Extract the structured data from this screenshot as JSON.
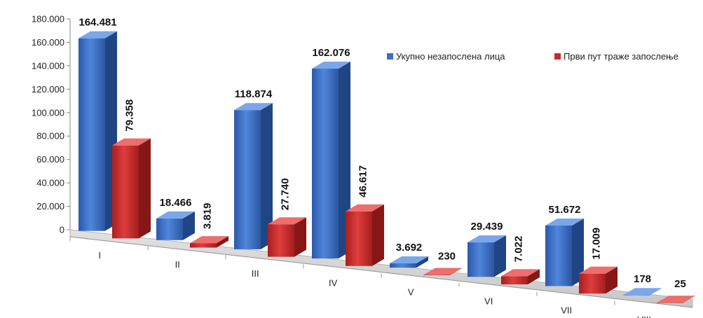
{
  "chart_data": {
    "type": "bar",
    "categories": [
      "I",
      "II",
      "III",
      "IV",
      "V",
      "VI",
      "VII",
      "VIII"
    ],
    "series": [
      {
        "name": "Укупно незапослена лица",
        "values": [
          164481,
          18466,
          118874,
          162076,
          3692,
          29439,
          51672,
          178
        ],
        "labels": [
          "164.481",
          "18.466",
          "118.874",
          "162.076",
          "3.692",
          "29.439",
          "51.672",
          "178"
        ]
      },
      {
        "name": "Први пут траже запослење",
        "values": [
          79358,
          3819,
          27740,
          46617,
          230,
          7022,
          17009,
          25
        ],
        "labels": [
          "79.358",
          "3.819",
          "27.740",
          "46.617",
          "230",
          "7.022",
          "17.009",
          "25"
        ]
      }
    ],
    "yticks": [
      "0",
      "20.000",
      "40.000",
      "60.000",
      "80.000",
      "100.000",
      "120.000",
      "140.000",
      "160.000",
      "180.000"
    ],
    "ylim": [
      0,
      180000
    ],
    "legend_position": "top-right",
    "colors": {
      "series1": "#3a6fc4",
      "series2": "#cc2a2a",
      "floor": "#d6d6d6"
    },
    "title": "",
    "xlabel": "",
    "ylabel": ""
  }
}
